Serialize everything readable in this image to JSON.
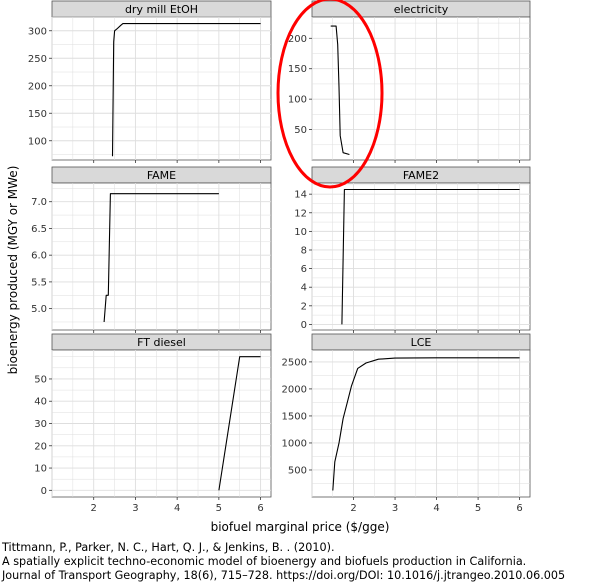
{
  "chart_data": {
    "type": "line",
    "ylabel": "bioenergy produced (MGY or MWe)",
    "xlabel": "biofuel marginal price ($/gge)",
    "x_ticks": [
      2,
      3,
      4,
      5,
      6
    ],
    "xlim": [
      1,
      6.25
    ],
    "grid": true,
    "panels": [
      {
        "title": "dry mill EtOH",
        "ylim": [
          65,
          325
        ],
        "y_ticks": [
          100,
          150,
          200,
          250,
          300
        ],
        "x": [
          2.45,
          2.48,
          2.5,
          2.55,
          2.65,
          2.7,
          3.0,
          6.0
        ],
        "y": [
          72,
          280,
          300,
          303,
          310,
          313,
          313,
          313
        ]
      },
      {
        "title": "electricity",
        "ylim": [
          0,
          235
        ],
        "y_ticks": [
          50,
          100,
          150,
          200
        ],
        "x": [
          1.45,
          1.58,
          1.62,
          1.65,
          1.68,
          1.75,
          1.9
        ],
        "y": [
          220,
          220,
          190,
          120,
          40,
          12,
          9
        ]
      },
      {
        "title": "FAME",
        "ylim": [
          4.6,
          7.35
        ],
        "y_ticks": [
          5.0,
          5.5,
          6.0,
          6.5,
          7.0
        ],
        "x": [
          2.25,
          2.3,
          2.35,
          2.4,
          2.45,
          5.0
        ],
        "y": [
          4.75,
          5.25,
          5.25,
          7.15,
          7.15,
          7.15
        ]
      },
      {
        "title": "FAME2",
        "ylim": [
          -0.6,
          15.2
        ],
        "y_ticks": [
          0,
          2,
          4,
          6,
          8,
          10,
          12,
          14
        ],
        "x": [
          1.72,
          1.78,
          1.8,
          6.0
        ],
        "y": [
          0,
          14.5,
          14.5,
          14.5
        ]
      },
      {
        "title": "FT diesel",
        "ylim": [
          -3,
          63
        ],
        "y_ticks": [
          0,
          10,
          20,
          30,
          40,
          50
        ],
        "x": [
          5.0,
          5.5,
          6.0
        ],
        "y": [
          0,
          60,
          60
        ]
      },
      {
        "title": "LCE",
        "ylim": [
          0,
          2720
        ],
        "y_ticks": [
          500,
          1000,
          1500,
          2000,
          2500
        ],
        "x": [
          1.5,
          1.55,
          1.65,
          1.75,
          1.85,
          1.95,
          2.1,
          2.3,
          2.6,
          3.0,
          4.0,
          6.0
        ],
        "y": [
          120,
          650,
          1000,
          1450,
          1750,
          2050,
          2380,
          2480,
          2550,
          2570,
          2575,
          2575
        ]
      }
    ],
    "annotation": {
      "type": "red-ellipse",
      "panel": "electricity",
      "color": "#ff0000"
    }
  },
  "citation": {
    "line1": "Tittmann, P., Parker, N. C., Hart, Q. J., & Jenkins, B. . (2010).",
    "line2": "A spatially explicit techno-economic model of bioenergy and biofuels production in California.",
    "line3": "Journal of Transport Geography, 18(6), 715–728. https://doi.org/DOI: 10.1016/j.jtrangeo.2010.06.005"
  },
  "colors": {
    "strip_fill": "#d9d9d9",
    "grid": "#dedede",
    "line": "#000000",
    "highlight": "#ff0000"
  }
}
